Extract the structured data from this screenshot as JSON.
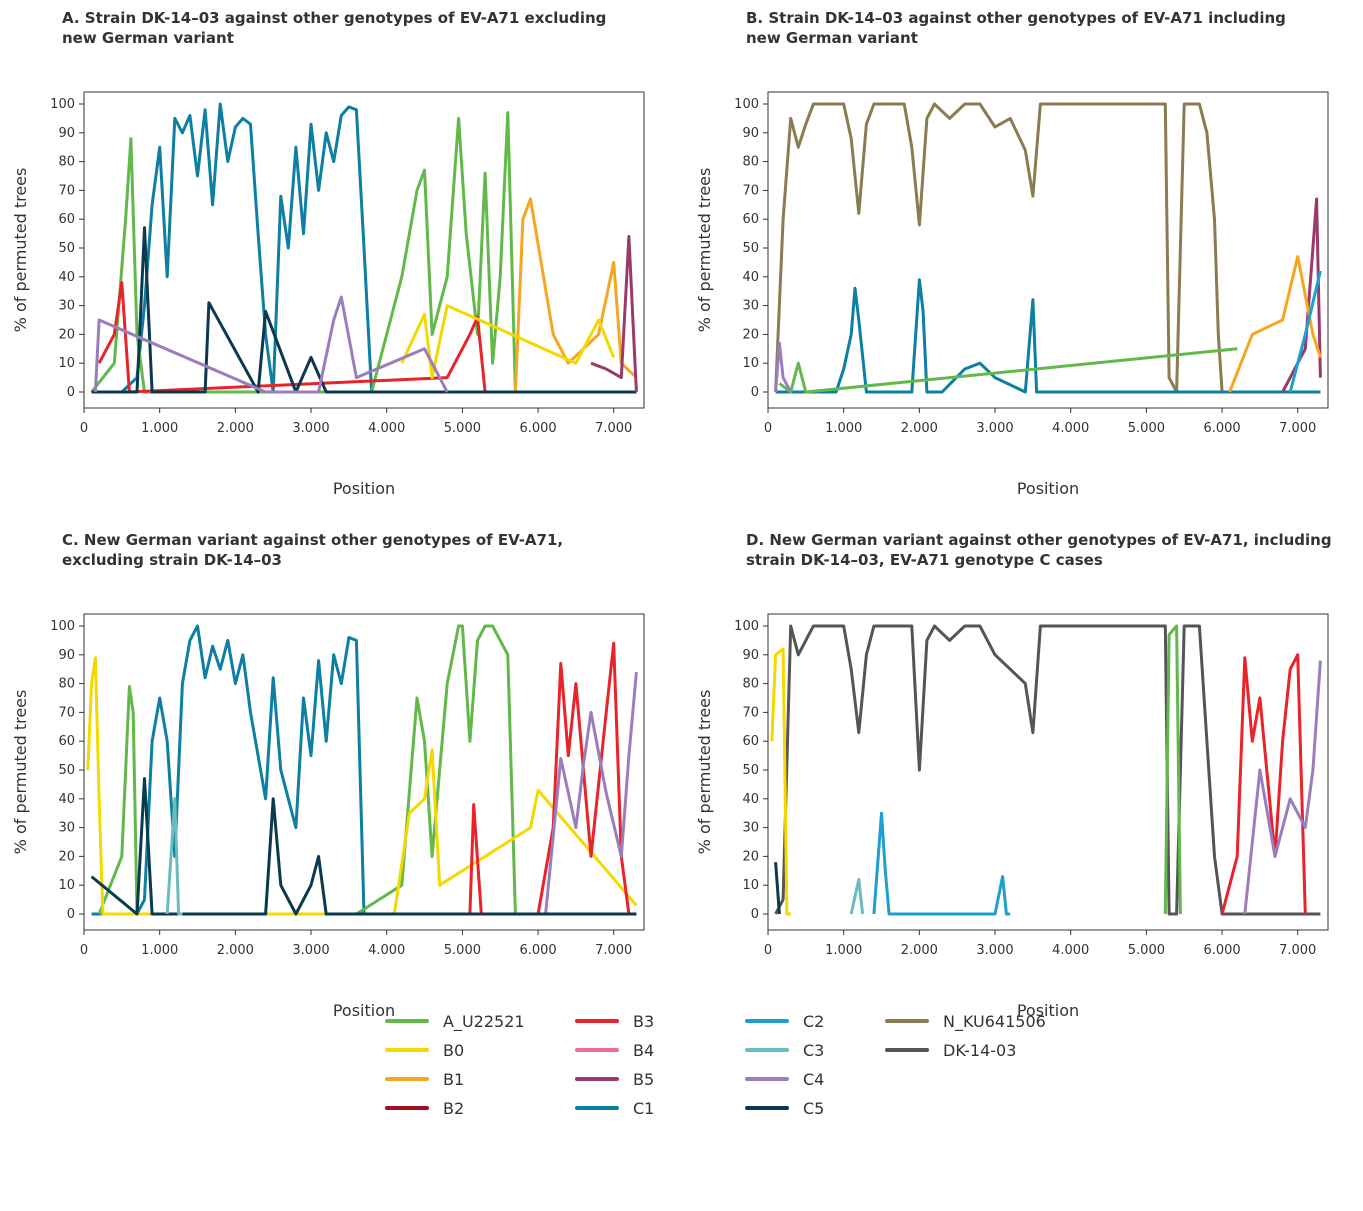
{
  "colors": {
    "A_U22521": "#62b94a",
    "B0": "#f5d800",
    "B1": "#f5a623",
    "B2": "#a0101d",
    "B3": "#e8232a",
    "B4": "#ee6f8f",
    "B5": "#9a3a6a",
    "C1": "#0d7fa3",
    "C2": "#1f9ed1",
    "C3": "#6bbcbe",
    "C4": "#9b7dbd",
    "C5": "#0b3a4f",
    "N_KU641506": "#8b7b50",
    "DK-14-03": "#555555"
  },
  "legend": [
    {
      "key": "A_U22521",
      "label": "A_U22521"
    },
    {
      "key": "B0",
      "label": "B0"
    },
    {
      "key": "B1",
      "label": "B1"
    },
    {
      "key": "B2",
      "label": "B2"
    },
    {
      "key": "B3",
      "label": "B3"
    },
    {
      "key": "B4",
      "label": "B4"
    },
    {
      "key": "B5",
      "label": "B5"
    },
    {
      "key": "C1",
      "label": "C1"
    },
    {
      "key": "C2",
      "label": "C2"
    },
    {
      "key": "C3",
      "label": "C3"
    },
    {
      "key": "C4",
      "label": "C4"
    },
    {
      "key": "C5",
      "label": "C5"
    },
    {
      "key": "N_KU641506",
      "label": "N_KU641506"
    },
    {
      "key": "DK-14-03",
      "label": "DK-14-03"
    }
  ],
  "chart_data": [
    {
      "type": "line",
      "title": "A. Strain DK-14–03 against other genotypes of EV-A71 excluding\n    new German variant",
      "xlabel": "Position",
      "ylabel": "% of permuted trees",
      "xlim": [
        0,
        7400
      ],
      "ylim": [
        0,
        100
      ],
      "xticks": [
        0,
        1000,
        2000,
        3000,
        4000,
        5000,
        6000,
        7000
      ],
      "xtick_labels": [
        "0",
        "1.000",
        "2.000",
        "3.000",
        "4.000",
        "5.000",
        "6.000",
        "7.000"
      ],
      "yticks": [
        0,
        10,
        20,
        30,
        40,
        50,
        60,
        70,
        80,
        90,
        100
      ],
      "series": [
        {
          "name": "C1",
          "x": [
            100,
            500,
            700,
            800,
            900,
            1000,
            1100,
            1200,
            1300,
            1400,
            1500,
            1600,
            1700,
            1800,
            1900,
            2000,
            2100,
            2200,
            2300,
            2400,
            2500,
            2600,
            2700,
            2800,
            2900,
            3000,
            3100,
            3200,
            3300,
            3400,
            3500,
            3600,
            3700,
            3800,
            4000,
            7300
          ],
          "y": [
            0,
            0,
            5,
            30,
            65,
            85,
            40,
            95,
            90,
            96,
            75,
            98,
            65,
            100,
            80,
            92,
            95,
            93,
            55,
            20,
            0,
            68,
            50,
            85,
            55,
            93,
            70,
            90,
            80,
            96,
            99,
            98,
            50,
            0,
            0,
            0
          ]
        },
        {
          "name": "A_U22521",
          "x": [
            100,
            400,
            550,
            620,
            700,
            800,
            3800,
            4200,
            4400,
            4500,
            4600,
            4800,
            4950,
            5050,
            5200,
            5300,
            5400,
            5500,
            5600,
            5700,
            7300
          ],
          "y": [
            0,
            10,
            60,
            88,
            20,
            0,
            0,
            40,
            70,
            77,
            20,
            40,
            95,
            55,
            20,
            76,
            10,
            40,
            97,
            0,
            0
          ]
        },
        {
          "name": "B1",
          "x": [
            5700,
            5800,
            5900,
            6200,
            6400,
            6800,
            7000,
            7100,
            7300
          ],
          "y": [
            0,
            60,
            67,
            20,
            10,
            20,
            45,
            10,
            5
          ]
        },
        {
          "name": "B3",
          "x": [
            200,
            400,
            500,
            600,
            4800,
            5100,
            5200,
            5300
          ],
          "y": [
            10,
            20,
            38,
            0,
            5,
            20,
            26,
            0
          ]
        },
        {
          "name": "B0",
          "x": [
            4200,
            4500,
            4600,
            4800,
            6500,
            6800,
            7000
          ],
          "y": [
            10,
            27,
            5,
            30,
            10,
            25,
            12
          ]
        },
        {
          "name": "C5",
          "x": [
            100,
            700,
            800,
            900,
            1600,
            1650,
            2300,
            2400,
            2800,
            3000,
            3200,
            7300
          ],
          "y": [
            0,
            0,
            57,
            0,
            0,
            31,
            0,
            28,
            0,
            12,
            0,
            0
          ]
        },
        {
          "name": "C4",
          "x": [
            150,
            200,
            2400,
            3100,
            3300,
            3400,
            3600,
            4500,
            4800
          ],
          "y": [
            0,
            25,
            0,
            0,
            25,
            33,
            5,
            15,
            0
          ]
        },
        {
          "name": "B5",
          "x": [
            6700,
            6900,
            7100,
            7200,
            7300
          ],
          "y": [
            10,
            8,
            5,
            54,
            0
          ]
        }
      ]
    },
    {
      "type": "line",
      "title": "B. Strain DK-14–03 against other genotypes of EV-A71 including\n    new German variant",
      "xlabel": "Position",
      "ylabel": "% of permuted trees",
      "xlim": [
        0,
        7400
      ],
      "ylim": [
        0,
        100
      ],
      "xticks": [
        0,
        1000,
        2000,
        3000,
        4000,
        5000,
        6000,
        7000
      ],
      "xtick_labels": [
        "0",
        "1.000",
        "2.000",
        "3.000",
        "4.000",
        "5.000",
        "6.000",
        "7.000"
      ],
      "yticks": [
        0,
        10,
        20,
        30,
        40,
        50,
        60,
        70,
        80,
        90,
        100
      ],
      "series": [
        {
          "name": "N_KU641506",
          "x": [
            100,
            200,
            300,
            400,
            500,
            600,
            800,
            1000,
            1100,
            1200,
            1300,
            1400,
            1600,
            1800,
            1900,
            2000,
            2100,
            2200,
            2400,
            2600,
            2800,
            3000,
            3200,
            3400,
            3500,
            3600,
            3800,
            4500,
            5000,
            5250,
            5300,
            5400,
            5500,
            5700,
            5800,
            5900,
            5950,
            6000,
            7300
          ],
          "y": [
            0,
            60,
            95,
            85,
            93,
            100,
            100,
            100,
            88,
            62,
            93,
            100,
            100,
            100,
            85,
            58,
            95,
            100,
            95,
            100,
            100,
            92,
            95,
            84,
            68,
            100,
            100,
            100,
            100,
            100,
            5,
            0,
            100,
            100,
            90,
            60,
            20,
            0,
            0
          ]
        },
        {
          "name": "C1",
          "x": [
            100,
            900,
            1000,
            1100,
            1150,
            1200,
            1300,
            1400,
            1900,
            2000,
            2050,
            2100,
            2300,
            2600,
            2800,
            3000,
            3400,
            3500,
            3550,
            7300
          ],
          "y": [
            0,
            0,
            8,
            20,
            36,
            25,
            0,
            0,
            0,
            39,
            28,
            0,
            0,
            8,
            10,
            5,
            0,
            32,
            0,
            0
          ]
        },
        {
          "name": "B5",
          "x": [
            6800,
            7000,
            7100,
            7250,
            7300
          ],
          "y": [
            0,
            10,
            15,
            67,
            5
          ]
        },
        {
          "name": "B1",
          "x": [
            6100,
            6400,
            6800,
            7000,
            7200,
            7300
          ],
          "y": [
            0,
            20,
            25,
            47,
            20,
            12
          ]
        },
        {
          "name": "C2",
          "x": [
            6900,
            7100,
            7300
          ],
          "y": [
            0,
            20,
            42
          ]
        },
        {
          "name": "A_U22521",
          "x": [
            150,
            300,
            400,
            500,
            6200
          ],
          "y": [
            3,
            0,
            10,
            0,
            15
          ]
        },
        {
          "name": "C4",
          "x": [
            100,
            150,
            200,
            300
          ],
          "y": [
            0,
            17,
            5,
            0
          ]
        }
      ]
    },
    {
      "type": "line",
      "title": "C. New German variant against other genotypes of EV-A71,\n    excluding strain DK-14–03",
      "xlabel": "Position",
      "ylabel": "% of permuted trees",
      "xlim": [
        0,
        7400
      ],
      "ylim": [
        0,
        100
      ],
      "xticks": [
        0,
        1000,
        2000,
        3000,
        4000,
        5000,
        6000,
        7000
      ],
      "xtick_labels": [
        "0",
        "1.000",
        "2.000",
        "3.000",
        "4.000",
        "5.000",
        "6.000",
        "7.000"
      ],
      "yticks": [
        0,
        10,
        20,
        30,
        40,
        50,
        60,
        70,
        80,
        90,
        100
      ],
      "series": [
        {
          "name": "C1",
          "x": [
            100,
            700,
            800,
            900,
            1000,
            1100,
            1200,
            1300,
            1400,
            1500,
            1600,
            1700,
            1800,
            1900,
            2000,
            2100,
            2200,
            2400,
            2500,
            2600,
            2700,
            2800,
            2900,
            3000,
            3100,
            3200,
            3300,
            3400,
            3500,
            3600,
            3700,
            7300
          ],
          "y": [
            0,
            0,
            5,
            60,
            75,
            60,
            20,
            80,
            95,
            100,
            82,
            93,
            85,
            95,
            80,
            90,
            70,
            40,
            82,
            50,
            40,
            30,
            75,
            55,
            88,
            60,
            90,
            80,
            96,
            95,
            0,
            0
          ]
        },
        {
          "name": "A_U22521",
          "x": [
            200,
            500,
            600,
            650,
            700,
            3600,
            4200,
            4400,
            4500,
            4600,
            4800,
            4950,
            5000,
            5100,
            5200,
            5300,
            5400,
            5500,
            5600,
            5700,
            7300
          ],
          "y": [
            0,
            20,
            79,
            70,
            0,
            0,
            10,
            75,
            60,
            20,
            80,
            100,
            100,
            60,
            95,
            100,
            100,
            95,
            90,
            0,
            0
          ]
        },
        {
          "name": "B0",
          "x": [
            50,
            100,
            150,
            200,
            250,
            4100,
            4300,
            4500,
            4600,
            4700,
            5900,
            6000,
            7300
          ],
          "y": [
            50,
            80,
            89,
            40,
            0,
            0,
            35,
            40,
            57,
            10,
            30,
            43,
            3
          ]
        },
        {
          "name": "B3",
          "x": [
            5100,
            5150,
            5250,
            6000,
            6200,
            6300,
            6400,
            6500,
            6700,
            6800,
            6900,
            7000,
            7100,
            7200
          ],
          "y": [
            0,
            38,
            0,
            0,
            30,
            87,
            55,
            80,
            20,
            45,
            70,
            94,
            20,
            0
          ]
        },
        {
          "name": "C4",
          "x": [
            6100,
            6300,
            6500,
            6600,
            6700,
            6900,
            7100,
            7200,
            7300
          ],
          "y": [
            0,
            54,
            30,
            52,
            70,
            42,
            20,
            55,
            84
          ]
        },
        {
          "name": "C5",
          "x": [
            100,
            700,
            800,
            900,
            2400,
            2500,
            2600,
            2800,
            3000,
            3100,
            3200,
            7300
          ],
          "y": [
            13,
            0,
            47,
            0,
            0,
            40,
            10,
            0,
            10,
            20,
            0,
            0
          ]
        },
        {
          "name": "C3",
          "x": [
            1100,
            1200,
            1250,
            1300
          ],
          "y": [
            0,
            40,
            0,
            0
          ]
        }
      ]
    },
    {
      "type": "line",
      "title": "D. New German variant against other genotypes of EV-A71, including\n    strain DK-14–03, EV-A71 genotype C cases",
      "xlabel": "Position",
      "ylabel": "% of permuted trees",
      "xlim": [
        0,
        7400
      ],
      "ylim": [
        0,
        100
      ],
      "xticks": [
        0,
        1000,
        2000,
        3000,
        4000,
        5000,
        6000,
        7000
      ],
      "xtick_labels": [
        "0",
        "1.000",
        "2.000",
        "3.000",
        "4.000",
        "5.000",
        "6.000",
        "7.000"
      ],
      "yticks": [
        0,
        10,
        20,
        30,
        40,
        50,
        60,
        70,
        80,
        90,
        100
      ],
      "series": [
        {
          "name": "DK-14-03",
          "x": [
            100,
            200,
            300,
            400,
            500,
            600,
            700,
            1000,
            1100,
            1200,
            1300,
            1400,
            1500,
            1900,
            2000,
            2100,
            2200,
            2400,
            2600,
            2800,
            3000,
            3200,
            3400,
            3500,
            3600,
            4000,
            4800,
            5250,
            5300,
            5400,
            5500,
            5700,
            5800,
            5900,
            6000,
            7300
          ],
          "y": [
            0,
            5,
            100,
            90,
            95,
            100,
            100,
            100,
            85,
            63,
            90,
            100,
            100,
            100,
            50,
            95,
            100,
            95,
            100,
            100,
            90,
            85,
            80,
            63,
            100,
            100,
            100,
            100,
            0,
            0,
            100,
            100,
            60,
            20,
            0,
            0
          ]
        },
        {
          "name": "B0",
          "x": [
            50,
            100,
            200,
            250,
            300
          ],
          "y": [
            60,
            90,
            92,
            0,
            0
          ]
        },
        {
          "name": "A_U22521",
          "x": [
            5250,
            5300,
            5400,
            5450
          ],
          "y": [
            0,
            97,
            100,
            0
          ]
        },
        {
          "name": "B3",
          "x": [
            6000,
            6200,
            6300,
            6400,
            6500,
            6700,
            6800,
            6900,
            7000,
            7100
          ],
          "y": [
            0,
            20,
            89,
            60,
            75,
            20,
            60,
            85,
            90,
            0
          ]
        },
        {
          "name": "C4",
          "x": [
            6300,
            6500,
            6700,
            6900,
            7100,
            7200,
            7300
          ],
          "y": [
            0,
            50,
            20,
            40,
            30,
            50,
            88
          ]
        },
        {
          "name": "C2",
          "x": [
            1400,
            1500,
            1550,
            1600,
            3000,
            3100,
            3150,
            3200
          ],
          "y": [
            0,
            35,
            15,
            0,
            0,
            13,
            0,
            0
          ]
        },
        {
          "name": "C3",
          "x": [
            1100,
            1200,
            1250
          ],
          "y": [
            0,
            12,
            0
          ]
        },
        {
          "name": "C5",
          "x": [
            100,
            150
          ],
          "y": [
            18,
            0
          ]
        }
      ]
    }
  ]
}
